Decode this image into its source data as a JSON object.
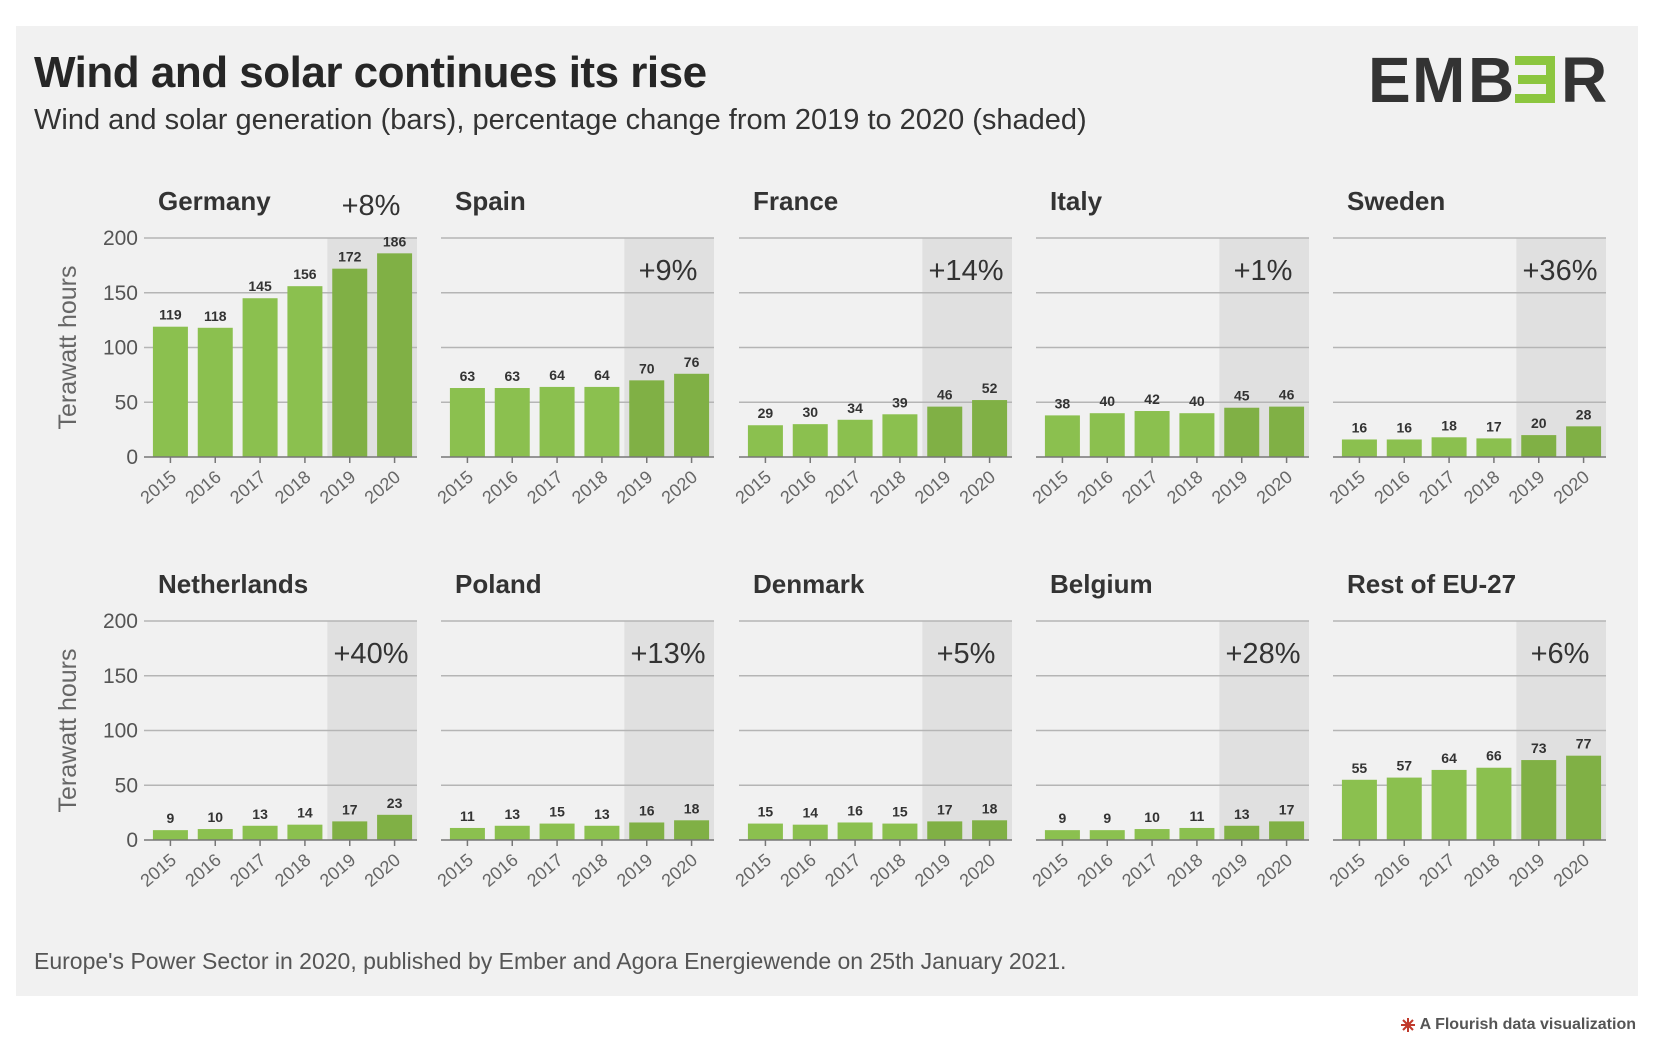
{
  "header": {
    "title": "Wind and solar continues its rise",
    "subtitle": "Wind and solar generation (bars), percentage change from 2019 to 2020 (shaded)"
  },
  "logo": {
    "text": "EMBER",
    "letters": [
      "E",
      "M",
      "B",
      "E",
      "R"
    ],
    "accent_color": "#8cc63f",
    "text_color": "#333333"
  },
  "footer": {
    "source": "Europe's Power Sector in 2020, published by Ember and Agora Energiewende on 25th January 2021.",
    "flourish": "A Flourish data visualization"
  },
  "colors": {
    "bar": "#8bc04f",
    "bar_highlight": "#80b045",
    "shade": "#e0e0e0",
    "grid": "#b5b5b5",
    "background": "#f1f1f1"
  },
  "chart_data": {
    "type": "bar",
    "categories": [
      "2015",
      "2016",
      "2017",
      "2018",
      "2019",
      "2020"
    ],
    "ylabel": "Terawatt hours",
    "ylim": [
      0,
      200
    ],
    "yticks": [
      0,
      50,
      100,
      150,
      200
    ],
    "shaded_categories": [
      "2019",
      "2020"
    ],
    "series": [
      {
        "name": "Germany",
        "change": "+8%",
        "values": [
          119,
          118,
          145,
          156,
          172,
          186
        ]
      },
      {
        "name": "Spain",
        "change": "+9%",
        "values": [
          63,
          63,
          64,
          64,
          70,
          76
        ]
      },
      {
        "name": "France",
        "change": "+14%",
        "values": [
          29,
          30,
          34,
          39,
          46,
          52
        ]
      },
      {
        "name": "Italy",
        "change": "+1%",
        "values": [
          38,
          40,
          42,
          40,
          45,
          46
        ]
      },
      {
        "name": "Sweden",
        "change": "+36%",
        "values": [
          16,
          16,
          18,
          17,
          20,
          28
        ]
      },
      {
        "name": "Netherlands",
        "change": "+40%",
        "values": [
          9,
          10,
          13,
          14,
          17,
          23
        ]
      },
      {
        "name": "Poland",
        "change": "+13%",
        "values": [
          11,
          13,
          15,
          13,
          16,
          18
        ]
      },
      {
        "name": "Denmark",
        "change": "+5%",
        "values": [
          15,
          14,
          16,
          15,
          17,
          18
        ]
      },
      {
        "name": "Belgium",
        "change": "+28%",
        "values": [
          9,
          9,
          10,
          11,
          13,
          17
        ]
      },
      {
        "name": "Rest of EU-27",
        "change": "+6%",
        "values": [
          55,
          57,
          64,
          66,
          73,
          77
        ]
      }
    ]
  }
}
